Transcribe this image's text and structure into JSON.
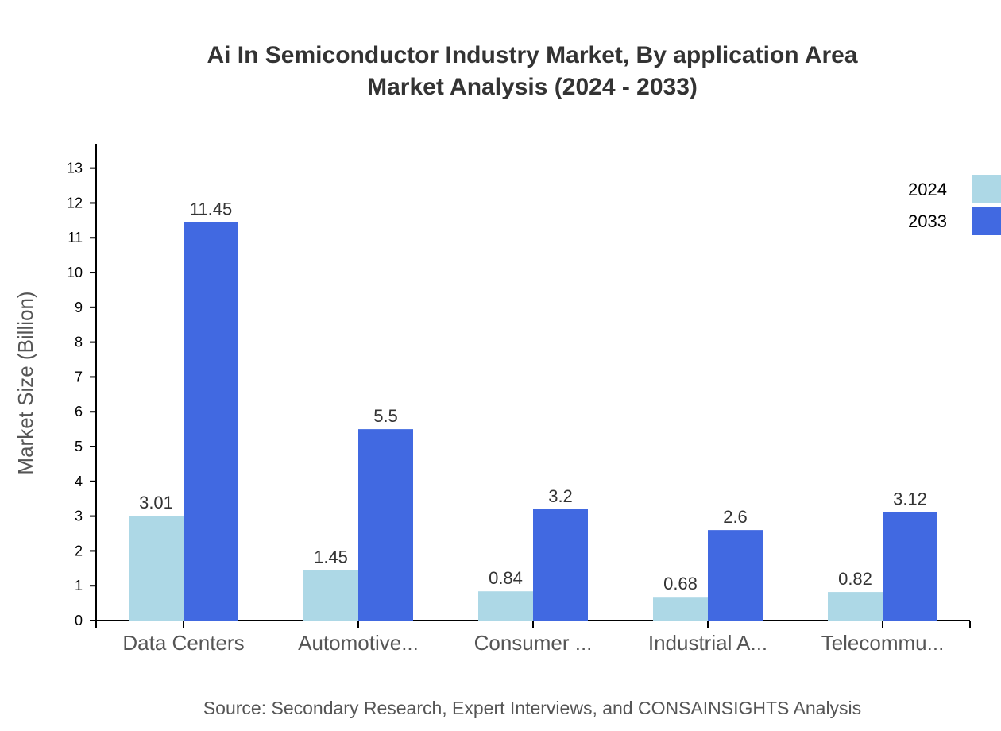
{
  "chart_data": {
    "type": "bar",
    "title": "Ai In Semiconductor Industry Market, By application Area",
    "subtitle": "Market Analysis (2024 - 2033)",
    "ylabel": "Market Size (Billion)",
    "xlabel": "",
    "categories": [
      "Data Centers",
      "Automotive...",
      "Consumer ...",
      "Industrial A...",
      "Telecommu..."
    ],
    "series": [
      {
        "name": "2024",
        "values": [
          3.01,
          1.45,
          0.84,
          0.68,
          0.82
        ],
        "color": "#add8e6"
      },
      {
        "name": "2033",
        "values": [
          11.45,
          5.5,
          3.2,
          2.6,
          3.12
        ],
        "color": "#4169e1"
      }
    ],
    "ylim": [
      0,
      13.7
    ],
    "yticks": [
      0,
      1,
      2,
      3,
      4,
      5,
      6,
      7,
      8,
      9,
      10,
      11,
      12,
      13
    ],
    "grid": false,
    "legend_position": "top-right",
    "source": "Source: Secondary Research, Expert Interviews, and CONSAINSIGHTS Analysis"
  }
}
